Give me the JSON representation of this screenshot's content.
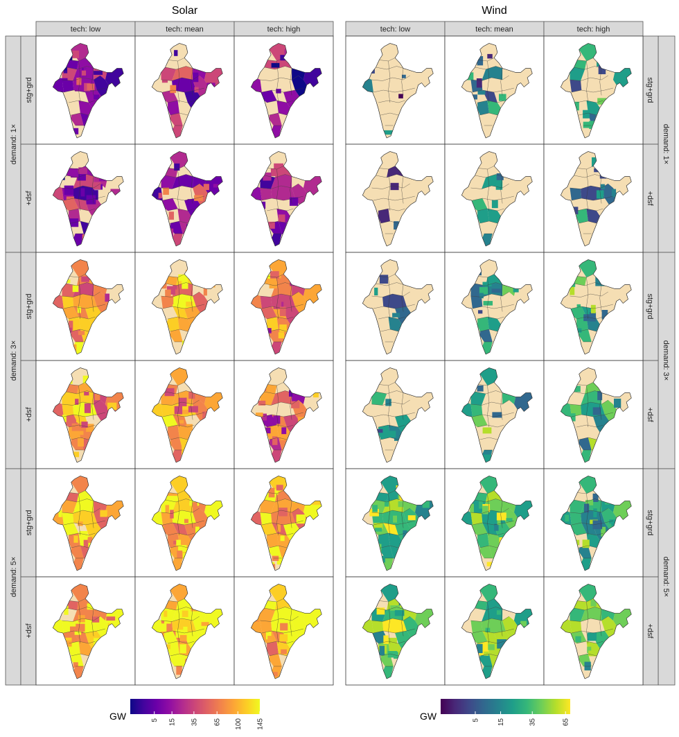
{
  "chart_data": {
    "type": "heatmap",
    "description_kind": "faceted choropleth maps",
    "unit_label": "GW",
    "blocks": [
      {
        "title": "Solar",
        "colormap": "plasma",
        "legend_ticks": [
          "5",
          "15",
          "35",
          "65",
          "100",
          "145"
        ],
        "legend_range": [
          0,
          145
        ]
      },
      {
        "title": "Wind",
        "colormap": "viridis",
        "legend_ticks": [
          "5",
          "15",
          "35",
          "65"
        ],
        "legend_range": [
          0,
          70
        ]
      }
    ],
    "columns": [
      "tech: low",
      "tech: mean",
      "tech: high"
    ],
    "row_groups": [
      {
        "label": "demand: 1×",
        "rows": [
          "stg+grd",
          "+dsf"
        ]
      },
      {
        "label": "demand: 3×",
        "rows": [
          "stg+grd",
          "+dsf"
        ]
      },
      {
        "label": "demand: 5×",
        "rows": [
          "stg+grd",
          "+dsf"
        ]
      }
    ],
    "no_capacity_color": "#f5deb3",
    "panel_levels": {
      "Solar": [
        [
          0.35,
          0.38,
          0.3
        ],
        [
          0.33,
          0.36,
          0.28
        ],
        [
          0.72,
          0.7,
          0.62
        ],
        [
          0.74,
          0.72,
          0.55
        ],
        [
          0.82,
          0.84,
          0.8
        ],
        [
          0.84,
          0.86,
          0.84
        ]
      ],
      "Wind": [
        [
          0.3,
          0.45,
          0.45
        ],
        [
          0.3,
          0.45,
          0.45
        ],
        [
          0.45,
          0.55,
          0.6
        ],
        [
          0.5,
          0.55,
          0.62
        ],
        [
          0.7,
          0.7,
          0.6
        ],
        [
          0.72,
          0.7,
          0.68
        ]
      ]
    },
    "panel_coverage": {
      "Solar": [
        [
          0.7,
          0.75,
          0.65
        ],
        [
          0.75,
          0.78,
          0.7
        ],
        [
          0.85,
          0.85,
          0.8
        ],
        [
          0.85,
          0.85,
          0.78
        ],
        [
          0.95,
          0.97,
          0.95
        ],
        [
          0.95,
          0.97,
          0.96
        ]
      ],
      "Wind": [
        [
          0.08,
          0.25,
          0.4
        ],
        [
          0.1,
          0.25,
          0.35
        ],
        [
          0.15,
          0.35,
          0.45
        ],
        [
          0.15,
          0.35,
          0.5
        ],
        [
          0.85,
          0.75,
          0.7
        ],
        [
          0.8,
          0.78,
          0.72
        ]
      ]
    }
  }
}
